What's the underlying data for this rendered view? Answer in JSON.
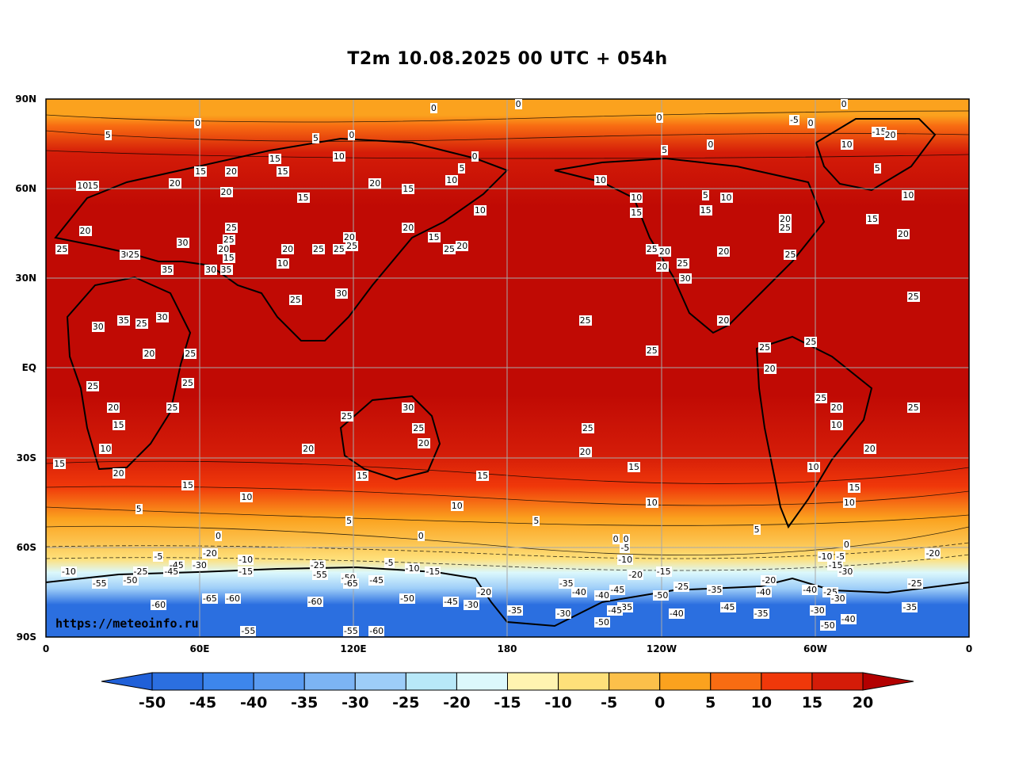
{
  "title": "T2m 10.08.2025 00 UTC + 054h",
  "watermark": "https://meteoinfo.ru",
  "axes": {
    "lat_labels": [
      "90N",
      "60N",
      "30N",
      "EQ",
      "30S",
      "60S",
      "90S"
    ],
    "lon_labels": [
      "0",
      "60E",
      "120E",
      "180",
      "120W",
      "60W",
      "0"
    ]
  },
  "colorbar": {
    "ticks": [
      "-50",
      "-45",
      "-40",
      "-35",
      "-30",
      "-25",
      "-20",
      "-15",
      "-10",
      "-5",
      "0",
      "5",
      "10",
      "15",
      "20"
    ],
    "colors": [
      "#2b6fe0",
      "#3d86ec",
      "#5a9bf0",
      "#7cb4f4",
      "#9dcdf8",
      "#b8e8f8",
      "#dcf8fc",
      "#fff4b0",
      "#fee07a",
      "#fcc04a",
      "#fba21e",
      "#f86c12",
      "#f0380a",
      "#d41c08",
      "#b30000"
    ],
    "left_extend_color": "#2060d8",
    "right_extend_color": "#b30000"
  },
  "contour_labels": [
    {
      "t": "0",
      "lon": -175,
      "lat": 89
    },
    {
      "t": "0",
      "lon": -48,
      "lat": 89
    },
    {
      "t": "0",
      "lon": 152,
      "lat": 87
    },
    {
      "t": "0",
      "lon": 60,
      "lat": 82
    },
    {
      "t": "5",
      "lon": 25,
      "lat": 78
    },
    {
      "t": "0",
      "lon": 120,
      "lat": 78
    },
    {
      "t": "15",
      "lon": 89,
      "lat": 70
    },
    {
      "t": "10",
      "lon": 114,
      "lat": 71
    },
    {
      "t": "5",
      "lon": 106,
      "lat": 77
    },
    {
      "t": "15",
      "lon": 60,
      "lat": 66
    },
    {
      "t": "20",
      "lon": 72,
      "lat": 66
    },
    {
      "t": "20",
      "lon": 50,
      "lat": 62
    },
    {
      "t": "15",
      "lon": 92,
      "lat": 66
    },
    {
      "t": "10",
      "lon": 158,
      "lat": 63
    },
    {
      "t": "5",
      "lon": 163,
      "lat": 67
    },
    {
      "t": "0",
      "lon": 168,
      "lat": 71
    },
    {
      "t": "10",
      "lon": -144,
      "lat": 63
    },
    {
      "t": "10",
      "lon": -130,
      "lat": 57
    },
    {
      "t": "15",
      "lon": -130,
      "lat": 52
    },
    {
      "t": "5",
      "lon": -102,
      "lat": 58
    },
    {
      "t": "10",
      "lon": -95,
      "lat": 57
    },
    {
      "t": "0",
      "lon": -120,
      "lat": 84
    },
    {
      "t": "0",
      "lon": -100,
      "lat": 75
    },
    {
      "t": "5",
      "lon": -118,
      "lat": 73
    },
    {
      "t": "-5",
      "lon": -68,
      "lat": 83
    },
    {
      "t": "0",
      "lon": -61,
      "lat": 82
    },
    {
      "t": "10",
      "lon": -48,
      "lat": 75
    },
    {
      "t": "-15",
      "lon": -36,
      "lat": 79
    },
    {
      "t": "20",
      "lon": -31,
      "lat": 78
    },
    {
      "t": "5",
      "lon": -35,
      "lat": 67
    },
    {
      "t": "10",
      "lon": -24,
      "lat": 58
    },
    {
      "t": "15",
      "lon": -38,
      "lat": 50
    },
    {
      "t": "20",
      "lon": -26,
      "lat": 45
    },
    {
      "t": "20",
      "lon": -72,
      "lat": 50
    },
    {
      "t": "25",
      "lon": -72,
      "lat": 47
    },
    {
      "t": "25",
      "lon": -70,
      "lat": 38
    },
    {
      "t": "15",
      "lon": -103,
      "lat": 53
    },
    {
      "t": "20",
      "lon": -96,
      "lat": 39
    },
    {
      "t": "25",
      "lon": -124,
      "lat": 40
    },
    {
      "t": "20",
      "lon": -119,
      "lat": 39
    },
    {
      "t": "20",
      "lon": -120,
      "lat": 34
    },
    {
      "t": "25",
      "lon": -112,
      "lat": 35
    },
    {
      "t": "30",
      "lon": -111,
      "lat": 30
    },
    {
      "t": "25",
      "lon": -22,
      "lat": 24
    },
    {
      "t": "20",
      "lon": -96,
      "lat": 16
    },
    {
      "t": "25",
      "lon": -124,
      "lat": 6
    },
    {
      "t": "25",
      "lon": -150,
      "lat": 16
    },
    {
      "t": "25",
      "lon": -80,
      "lat": 7
    },
    {
      "t": "25",
      "lon": -62,
      "lat": 9
    },
    {
      "t": "20",
      "lon": -78,
      "lat": 0
    },
    {
      "t": "25",
      "lon": -22,
      "lat": -13
    },
    {
      "t": "25",
      "lon": -58,
      "lat": -10
    },
    {
      "t": "20",
      "lon": -52,
      "lat": -13
    },
    {
      "t": "10",
      "lon": -52,
      "lat": -19
    },
    {
      "t": "20",
      "lon": -39,
      "lat": -27
    },
    {
      "t": "10",
      "lon": -61,
      "lat": -33
    },
    {
      "t": "15",
      "lon": -45,
      "lat": -40
    },
    {
      "t": "10",
      "lon": -47,
      "lat": -45
    },
    {
      "t": "5",
      "lon": -82,
      "lat": -54
    },
    {
      "t": "0",
      "lon": -47,
      "lat": -59
    },
    {
      "t": "20",
      "lon": -150,
      "lat": -28
    },
    {
      "t": "25",
      "lon": -149,
      "lat": -20
    },
    {
      "t": "15",
      "lon": -131,
      "lat": -33
    },
    {
      "t": "10",
      "lon": -124,
      "lat": -45
    },
    {
      "t": "5",
      "lon": -168,
      "lat": -51
    },
    {
      "t": "0",
      "lon": -137,
      "lat": -57
    },
    {
      "t": "20",
      "lon": 141,
      "lat": 47
    },
    {
      "t": "15",
      "lon": 151,
      "lat": 44
    },
    {
      "t": "25",
      "lon": 157,
      "lat": 40
    },
    {
      "t": "20",
      "lon": 162,
      "lat": 41
    },
    {
      "t": "10",
      "lon": 169,
      "lat": 53
    },
    {
      "t": "20",
      "lon": 128,
      "lat": 62
    },
    {
      "t": "15",
      "lon": 141,
      "lat": 60
    },
    {
      "t": "20",
      "lon": 118,
      "lat": 44
    },
    {
      "t": "25",
      "lon": 114,
      "lat": 40
    },
    {
      "t": "25",
      "lon": 106,
      "lat": 40
    },
    {
      "t": "20",
      "lon": 94,
      "lat": 40
    },
    {
      "t": "10",
      "lon": 92,
      "lat": 35
    },
    {
      "t": "25",
      "lon": 97,
      "lat": 23
    },
    {
      "t": "30",
      "lon": 115,
      "lat": 25
    },
    {
      "t": "25",
      "lon": 119,
      "lat": 41
    },
    {
      "t": "15",
      "lon": 100,
      "lat": 57
    },
    {
      "t": "20",
      "lon": 70,
      "lat": 59
    },
    {
      "t": "25",
      "lon": 72,
      "lat": 47
    },
    {
      "t": "25",
      "lon": 71,
      "lat": 43
    },
    {
      "t": "20",
      "lon": 69,
      "lat": 40
    },
    {
      "t": "15",
      "lon": 71,
      "lat": 37
    },
    {
      "t": "35",
      "lon": 70,
      "lat": 33
    },
    {
      "t": "30",
      "lon": 64,
      "lat": 33
    },
    {
      "t": "30",
      "lon": 53,
      "lat": 42
    },
    {
      "t": "35",
      "lon": 47,
      "lat": 33
    },
    {
      "t": "30",
      "lon": 31,
      "lat": 38
    },
    {
      "t": "25",
      "lon": 34,
      "lat": 38
    },
    {
      "t": "20",
      "lon": 15,
      "lat": 46
    },
    {
      "t": "25",
      "lon": 6,
      "lat": 40
    },
    {
      "t": "15",
      "lon": 18,
      "lat": 61
    },
    {
      "t": "10",
      "lon": 14,
      "lat": 61
    },
    {
      "t": "30",
      "lon": 20,
      "lat": 14
    },
    {
      "t": "35",
      "lon": 30,
      "lat": 16
    },
    {
      "t": "25",
      "lon": 37,
      "lat": 15
    },
    {
      "t": "30",
      "lon": 45,
      "lat": 17
    },
    {
      "t": "20",
      "lon": 40,
      "lat": 5
    },
    {
      "t": "25",
      "lon": 56,
      "lat": 5
    },
    {
      "t": "25",
      "lon": 55,
      "lat": -5
    },
    {
      "t": "25",
      "lon": 18,
      "lat": -6
    },
    {
      "t": "20",
      "lon": 26,
      "lat": -13
    },
    {
      "t": "25",
      "lon": 49,
      "lat": -13
    },
    {
      "t": "15",
      "lon": 28,
      "lat": -19
    },
    {
      "t": "10",
      "lon": 23,
      "lat": -27
    },
    {
      "t": "20",
      "lon": 28,
      "lat": -35
    },
    {
      "t": "15",
      "lon": 5,
      "lat": -32
    },
    {
      "t": "15",
      "lon": 55,
      "lat": -39
    },
    {
      "t": "10",
      "lon": 78,
      "lat": -43
    },
    {
      "t": "5",
      "lon": 37,
      "lat": -47
    },
    {
      "t": "0",
      "lon": 68,
      "lat": -56
    },
    {
      "t": "5",
      "lon": 119,
      "lat": -51
    },
    {
      "t": "25",
      "lon": 117,
      "lat": -16
    },
    {
      "t": "30",
      "lon": 141,
      "lat": -13
    },
    {
      "t": "25",
      "lon": 145,
      "lat": -20
    },
    {
      "t": "20",
      "lon": 147,
      "lat": -25
    },
    {
      "t": "20",
      "lon": 102,
      "lat": -27
    },
    {
      "t": "15",
      "lon": 123,
      "lat": -36
    },
    {
      "t": "15",
      "lon": 170,
      "lat": -36
    },
    {
      "t": "10",
      "lon": 160,
      "lat": -46
    },
    {
      "t": "0",
      "lon": 147,
      "lat": -56
    },
    {
      "t": "-5",
      "lon": 44,
      "lat": -63
    },
    {
      "t": "-20",
      "lon": 63,
      "lat": -62
    },
    {
      "t": "-10",
      "lon": 77,
      "lat": -64
    },
    {
      "t": "-30",
      "lon": 59,
      "lat": -66
    },
    {
      "t": "-45",
      "lon": 50,
      "lat": -66
    },
    {
      "t": "-15",
      "lon": 77,
      "lat": -68
    },
    {
      "t": "-25",
      "lon": 36,
      "lat": -68
    },
    {
      "t": "-45",
      "lon": 48,
      "lat": -68
    },
    {
      "t": "-10",
      "lon": 8,
      "lat": -68
    },
    {
      "t": "-55",
      "lon": 20,
      "lat": -72
    },
    {
      "t": "-50",
      "lon": 32,
      "lat": -71
    },
    {
      "t": "-25",
      "lon": 105,
      "lat": -66
    },
    {
      "t": "-55",
      "lon": 106,
      "lat": -69
    },
    {
      "t": "-50",
      "lon": 117,
      "lat": -70
    },
    {
      "t": "-65",
      "lon": 118,
      "lat": -72
    },
    {
      "t": "-45",
      "lon": 128,
      "lat": -71
    },
    {
      "t": "-60",
      "lon": 43,
      "lat": -79
    },
    {
      "t": "-65",
      "lon": 63,
      "lat": -77
    },
    {
      "t": "-60",
      "lon": 72,
      "lat": -77
    },
    {
      "t": "-60",
      "lon": 104,
      "lat": -78
    },
    {
      "t": "-50",
      "lon": 140,
      "lat": -77
    },
    {
      "t": "-45",
      "lon": 157,
      "lat": -78
    },
    {
      "t": "-15",
      "lon": 150,
      "lat": -68
    },
    {
      "t": "-55",
      "lon": 78,
      "lat": -88
    },
    {
      "t": "-55",
      "lon": 118,
      "lat": -88
    },
    {
      "t": "-60",
      "lon": 128,
      "lat": -88
    },
    {
      "t": "-10",
      "lon": 142,
      "lat": -67
    },
    {
      "t": "-5",
      "lon": 134,
      "lat": -65
    },
    {
      "t": "-20",
      "lon": 170,
      "lat": -75
    },
    {
      "t": "-30",
      "lon": 165,
      "lat": -79
    },
    {
      "t": "-35",
      "lon": -178,
      "lat": -81
    },
    {
      "t": "-35",
      "lon": -158,
      "lat": -72
    },
    {
      "t": "-40",
      "lon": -153,
      "lat": -75
    },
    {
      "t": "-30",
      "lon": -159,
      "lat": -82
    },
    {
      "t": "-40",
      "lon": -144,
      "lat": -76
    },
    {
      "t": "-45",
      "lon": -138,
      "lat": -74
    },
    {
      "t": "-35",
      "lon": -135,
      "lat": -80
    },
    {
      "t": "-45",
      "lon": -139,
      "lat": -81
    },
    {
      "t": "-50",
      "lon": -144,
      "lat": -85
    },
    {
      "t": "-20",
      "lon": -131,
      "lat": -69
    },
    {
      "t": "-15",
      "lon": -120,
      "lat": -68
    },
    {
      "t": "-50",
      "lon": -121,
      "lat": -76
    },
    {
      "t": "-25",
      "lon": -113,
      "lat": -73
    },
    {
      "t": "-35",
      "lon": -100,
      "lat": -74
    },
    {
      "t": "-40",
      "lon": -115,
      "lat": -82
    },
    {
      "t": "-45",
      "lon": -95,
      "lat": -80
    },
    {
      "t": "-40",
      "lon": -81,
      "lat": -75
    },
    {
      "t": "-35",
      "lon": -82,
      "lat": -82
    },
    {
      "t": "-20",
      "lon": -79,
      "lat": -71
    },
    {
      "t": "-40",
      "lon": -63,
      "lat": -74
    },
    {
      "t": "-30",
      "lon": -60,
      "lat": -81
    },
    {
      "t": "-50",
      "lon": -56,
      "lat": -86
    },
    {
      "t": "-25",
      "lon": -55,
      "lat": -75
    },
    {
      "t": "-30",
      "lon": -52,
      "lat": -77
    },
    {
      "t": "-40",
      "lon": -48,
      "lat": -84
    },
    {
      "t": "-30",
      "lon": -49,
      "lat": -68
    },
    {
      "t": "-15",
      "lon": -53,
      "lat": -66
    },
    {
      "t": "-5",
      "lon": -50,
      "lat": -63
    },
    {
      "t": "-10",
      "lon": -57,
      "lat": -63
    },
    {
      "t": "-25",
      "lon": -22,
      "lat": -72
    },
    {
      "t": "-20",
      "lon": -15,
      "lat": -62
    },
    {
      "t": "-35",
      "lon": -24,
      "lat": -80
    },
    {
      "t": "-5",
      "lon": -134,
      "lat": -60
    },
    {
      "t": "-10",
      "lon": -135,
      "lat": -64
    },
    {
      "t": "0",
      "lon": -133,
      "lat": -57
    }
  ]
}
